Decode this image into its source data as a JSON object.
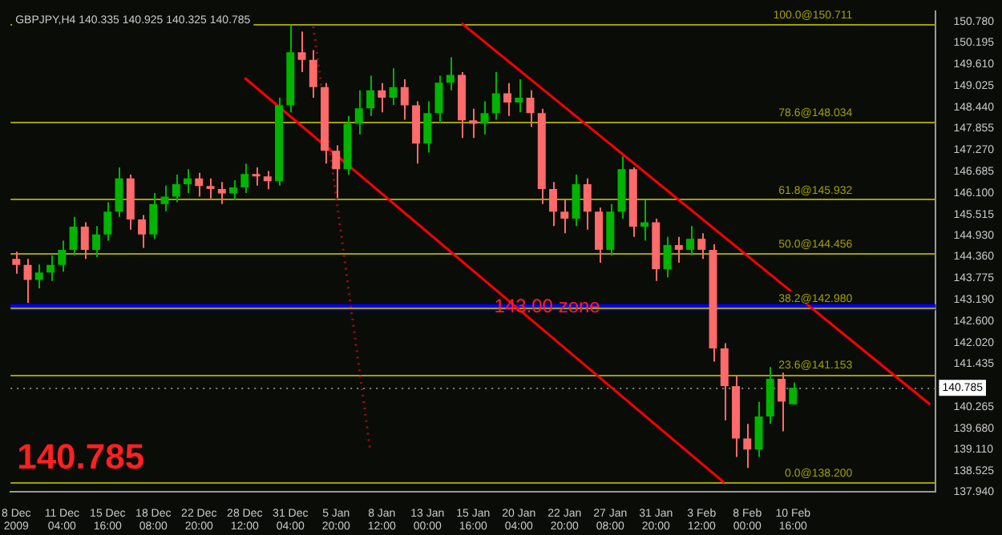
{
  "chart_data": {
    "type": "candlestick",
    "title": "GBPJPY,H4 140.335 140.925 140.325 140.785",
    "annotations": [
      "140.785"
    ],
    "categories": [
      "8 Dec 2009",
      null,
      null,
      null,
      "11 Dec 04:00",
      null,
      null,
      null,
      "15 Dec 16:00",
      null,
      null,
      null,
      "18 Dec 08:00",
      null,
      null,
      null,
      "22 Dec 20:00",
      null,
      null,
      null,
      "28 Dec 12:00",
      null,
      null,
      null,
      "31 Dec 04:00",
      null,
      null,
      null,
      "5 Jan 20:00",
      null,
      null,
      null,
      "8 Jan 12:00",
      null,
      null,
      null,
      "13 Jan 00:00",
      null,
      null,
      null,
      "15 Jan 16:00",
      null,
      null,
      null,
      "20 Jan 04:00",
      null,
      null,
      null,
      "22 Jan 20:00",
      null,
      null,
      null,
      "27 Jan 08:00",
      null,
      null,
      null,
      "31 Jan 20:00",
      null,
      null,
      null,
      "3 Feb 12:00",
      null,
      null,
      null,
      "8 Feb 00:00",
      null,
      null,
      null,
      "10 Feb 16:00",
      null,
      null,
      null,
      null,
      null,
      null,
      null,
      null,
      null,
      null,
      null,
      null
    ],
    "ohlc": [
      [
        144.3,
        144.5,
        143.9,
        144.14
      ],
      [
        144.14,
        144.3,
        143.1,
        143.73
      ],
      [
        143.73,
        144.15,
        143.5,
        143.93
      ],
      [
        143.93,
        144.4,
        143.7,
        144.14
      ],
      [
        144.14,
        144.8,
        143.95,
        144.55
      ],
      [
        144.55,
        145.45,
        144.4,
        145.18
      ],
      [
        145.18,
        145.3,
        144.3,
        144.55
      ],
      [
        144.55,
        145.2,
        144.35,
        144.97
      ],
      [
        144.97,
        145.85,
        144.8,
        145.59
      ],
      [
        145.59,
        146.8,
        145.45,
        146.5
      ],
      [
        146.5,
        146.6,
        145.1,
        145.38
      ],
      [
        145.38,
        145.5,
        144.6,
        144.97
      ],
      [
        144.97,
        146.1,
        144.85,
        145.8
      ],
      [
        145.8,
        146.3,
        145.6,
        146.0
      ],
      [
        146.0,
        146.6,
        145.85,
        146.34
      ],
      [
        146.34,
        146.75,
        146.1,
        146.5
      ],
      [
        146.5,
        146.65,
        146.0,
        146.29
      ],
      [
        146.29,
        146.5,
        145.95,
        146.21
      ],
      [
        146.21,
        146.4,
        145.8,
        146.09
      ],
      [
        146.09,
        146.45,
        145.9,
        146.25
      ],
      [
        146.25,
        146.9,
        146.1,
        146.62
      ],
      [
        146.62,
        146.8,
        146.3,
        146.55
      ],
      [
        146.55,
        146.7,
        146.2,
        146.42
      ],
      [
        146.42,
        148.7,
        146.3,
        148.49
      ],
      [
        148.49,
        150.68,
        148.3,
        149.94
      ],
      [
        149.94,
        150.5,
        149.4,
        149.73
      ],
      [
        149.73,
        150.0,
        148.7,
        148.99
      ],
      [
        148.99,
        149.1,
        146.9,
        147.25
      ],
      [
        147.25,
        147.4,
        145.95,
        146.75
      ],
      [
        146.75,
        148.2,
        146.6,
        147.99
      ],
      [
        147.99,
        148.9,
        147.7,
        148.41
      ],
      [
        148.41,
        149.3,
        148.2,
        148.9
      ],
      [
        148.9,
        149.1,
        148.3,
        148.7
      ],
      [
        148.7,
        149.5,
        148.5,
        148.99
      ],
      [
        148.99,
        149.2,
        148.1,
        148.49
      ],
      [
        148.49,
        148.6,
        146.9,
        147.45
      ],
      [
        147.45,
        148.6,
        147.2,
        148.28
      ],
      [
        148.28,
        149.3,
        148.0,
        149.11
      ],
      [
        149.11,
        149.8,
        148.9,
        149.32
      ],
      [
        149.32,
        149.4,
        147.6,
        148.08
      ],
      [
        148.08,
        148.4,
        147.6,
        147.99
      ],
      [
        147.99,
        148.6,
        147.7,
        148.28
      ],
      [
        148.28,
        149.4,
        148.1,
        148.82
      ],
      [
        148.82,
        149.1,
        148.2,
        148.57
      ],
      [
        148.57,
        149.2,
        148.3,
        148.7
      ],
      [
        148.7,
        148.9,
        147.9,
        148.28
      ],
      [
        148.28,
        148.4,
        145.8,
        146.21
      ],
      [
        146.21,
        146.4,
        145.2,
        145.59
      ],
      [
        145.59,
        145.9,
        145.0,
        145.4
      ],
      [
        145.4,
        146.6,
        145.2,
        146.34
      ],
      [
        146.34,
        146.5,
        145.1,
        145.59
      ],
      [
        145.59,
        145.7,
        144.2,
        144.55
      ],
      [
        144.55,
        145.8,
        144.4,
        145.59
      ],
      [
        145.59,
        147.1,
        145.4,
        146.75
      ],
      [
        146.75,
        146.8,
        144.9,
        145.18
      ],
      [
        145.18,
        145.9,
        144.8,
        145.3
      ],
      [
        145.3,
        145.4,
        143.7,
        144.02
      ],
      [
        144.02,
        144.9,
        143.8,
        144.68
      ],
      [
        144.68,
        144.9,
        144.2,
        144.55
      ],
      [
        144.55,
        145.2,
        144.4,
        144.85
      ],
      [
        144.85,
        145.0,
        144.3,
        144.55
      ],
      [
        144.55,
        144.7,
        141.5,
        141.86
      ],
      [
        141.86,
        142.0,
        139.9,
        140.83
      ],
      [
        140.83,
        141.1,
        138.9,
        139.4
      ],
      [
        139.4,
        139.8,
        138.6,
        139.1
      ],
      [
        139.1,
        140.4,
        138.9,
        140.0
      ],
      [
        140.0,
        141.35,
        139.8,
        141.03
      ],
      [
        141.03,
        141.2,
        139.6,
        140.41
      ],
      [
        140.335,
        140.925,
        140.325,
        140.785
      ],
      null,
      null,
      null,
      null,
      null,
      null,
      null,
      null,
      null,
      null,
      null,
      null
    ],
    "colors": [
      "#ff6a6a",
      "#ff6a6a",
      "#00b400",
      "#00b400",
      "#00b400",
      "#00b400",
      "#ff6a6a",
      "#00b400",
      "#00b400",
      "#00b400",
      "#ff6a6a",
      "#ff6a6a",
      "#00b400",
      "#00b400",
      "#00b400",
      "#00b400",
      "#ff6a6a",
      "#ff6a6a",
      "#ff6a6a",
      "#00b400",
      "#00b400",
      "#ff6a6a",
      "#ff6a6a",
      "#00b400",
      "#00b400",
      "#ff6a6a",
      "#ff6a6a",
      "#ff6a6a",
      "#ff6a6a",
      "#00b400",
      "#00b400",
      "#00b400",
      "#ff6a6a",
      "#00b400",
      "#ff6a6a",
      "#ff6a6a",
      "#00b400",
      "#00b400",
      "#00b400",
      "#ff6a6a",
      "#ff6a6a",
      "#00b400",
      "#00b400",
      "#ff6a6a",
      "#00b400",
      "#ff6a6a",
      "#ff6a6a",
      "#ff6a6a",
      "#ff6a6a",
      "#00b400",
      "#ff6a6a",
      "#ff6a6a",
      "#00b400",
      "#00b400",
      "#ff6a6a",
      "#00b400",
      "#ff6a6a",
      "#00b400",
      "#ff6a6a",
      "#00b400",
      "#ff6a6a",
      "#ff6a6a",
      "#ff6a6a",
      "#ff6a6a",
      "#ff6a6a",
      "#00b400",
      "#00b400",
      "#ff6a6a",
      "#00b400",
      null,
      null,
      null,
      null,
      null,
      null,
      null,
      null,
      null,
      null,
      null,
      null
    ],
    "series": [
      {
        "type": "line",
        "color": "#ff0000",
        "values": [
          null,
          null,
          null,
          null,
          null,
          null,
          null,
          null,
          null,
          null,
          null,
          null,
          null,
          null,
          null,
          null,
          null,
          null,
          null,
          null,
          149.24,
          null,
          null,
          null,
          null,
          null,
          null,
          null,
          null,
          null,
          null,
          null,
          null,
          null,
          null,
          null,
          null,
          null,
          null,
          null,
          null,
          null,
          null,
          null,
          null,
          null,
          null,
          null,
          null,
          null,
          null,
          null,
          null,
          null,
          null,
          null,
          null,
          null,
          null,
          null,
          null,
          null,
          138.19,
          null,
          null,
          null,
          null,
          null,
          null,
          null,
          null,
          null,
          null,
          null,
          null,
          null,
          null,
          null,
          null,
          null,
          null
        ]
      },
      {
        "type": "line",
        "color": "#ff0000",
        "values": [
          null,
          null,
          null,
          null,
          null,
          null,
          null,
          null,
          null,
          null,
          null,
          null,
          null,
          null,
          null,
          null,
          null,
          null,
          null,
          null,
          null,
          null,
          null,
          null,
          null,
          null,
          null,
          null,
          null,
          null,
          null,
          null,
          null,
          null,
          null,
          null,
          null,
          null,
          null,
          150.73,
          null,
          null,
          null,
          null,
          null,
          null,
          null,
          null,
          null,
          null,
          null,
          null,
          null,
          null,
          null,
          null,
          null,
          null,
          null,
          null,
          null,
          null,
          null,
          null,
          null,
          null,
          null,
          null,
          null,
          null,
          null,
          null,
          null,
          null,
          null,
          null,
          null,
          null,
          null,
          null,
          140.33
        ]
      },
      {
        "type": "line",
        "color": "#a01010",
        "line_style": "dotted",
        "values": [
          null,
          null,
          null,
          null,
          null,
          null,
          null,
          null,
          null,
          null,
          null,
          null,
          null,
          null,
          null,
          null,
          null,
          null,
          null,
          null,
          null,
          null,
          null,
          null,
          null,
          null,
          150.64,
          null,
          null,
          null,
          null,
          139.04,
          null,
          null,
          null,
          null,
          null,
          null,
          null,
          null,
          null,
          null,
          null,
          null,
          null,
          null,
          null,
          null,
          null,
          null,
          null,
          null,
          null,
          null,
          null,
          null,
          null,
          null,
          null,
          null,
          null,
          null,
          null,
          null,
          null,
          null,
          null,
          null,
          null,
          null,
          null,
          null,
          null,
          null,
          null,
          null,
          null,
          null,
          null,
          null,
          null
        ]
      }
    ],
    "ylim": [
      137.94,
      151.05
    ],
    "yticks": [
      {
        "value": 150.78,
        "label": "150.780"
      },
      {
        "value": 150.195,
        "label": "150.195"
      },
      {
        "value": 149.61,
        "label": "149.610"
      },
      {
        "value": 149.025,
        "label": "149.025"
      },
      {
        "value": 148.44,
        "label": "148.440"
      },
      {
        "value": 147.855,
        "label": "147.855"
      },
      {
        "value": 147.27,
        "label": "147.270"
      },
      {
        "value": 146.685,
        "label": "146.685"
      },
      {
        "value": 146.1,
        "label": "146.100"
      },
      {
        "value": 145.515,
        "label": "145.515"
      },
      {
        "value": 144.93,
        "label": "144.930"
      },
      {
        "value": 144.36,
        "label": "144.360"
      },
      {
        "value": 143.775,
        "label": "143.775"
      },
      {
        "value": 143.19,
        "label": "143.190"
      },
      {
        "value": 142.6,
        "label": "142.600"
      },
      {
        "value": 142.02,
        "label": "142.020"
      },
      {
        "value": 141.435,
        "label": "141.435"
      },
      {
        "value": 140.265,
        "label": "140.265"
      },
      {
        "value": 139.68,
        "label": "139.680"
      },
      {
        "value": 139.11,
        "label": "139.110"
      },
      {
        "value": 138.525,
        "label": "138.525"
      },
      {
        "value": 137.94,
        "label": "137.940"
      }
    ],
    "ref_lines": [
      {
        "axis": "y",
        "value": 150.711,
        "label": "100.0@150.711",
        "color": "#a0a000"
      },
      {
        "axis": "y",
        "value": 148.034,
        "label": "78.6@148.034",
        "color": "#a0a000"
      },
      {
        "axis": "y",
        "value": 145.932,
        "label": "61.8@145.932",
        "color": "#a0a000"
      },
      {
        "axis": "y",
        "value": 144.456,
        "label": "50.0@144.456",
        "color": "#a0a000"
      },
      {
        "axis": "y",
        "value": 142.98,
        "label": "38.2@142.980",
        "color": "#a0a000"
      },
      {
        "axis": "y",
        "value": 141.153,
        "label": "23.6@141.153",
        "color": "#a0a000"
      },
      {
        "axis": "y",
        "value": 138.2,
        "label": "0.0@138.200",
        "color": "#a0a000"
      },
      {
        "axis": "y",
        "value": 140.785,
        "label": "140.785",
        "color": "#808080",
        "line_style": "dotted"
      }
    ],
    "bands": [
      {
        "axis": "y",
        "from": 142.9,
        "to": 143.06,
        "label": "143.00 zone",
        "color": "#0000ff"
      }
    ],
    "legend": false
  }
}
